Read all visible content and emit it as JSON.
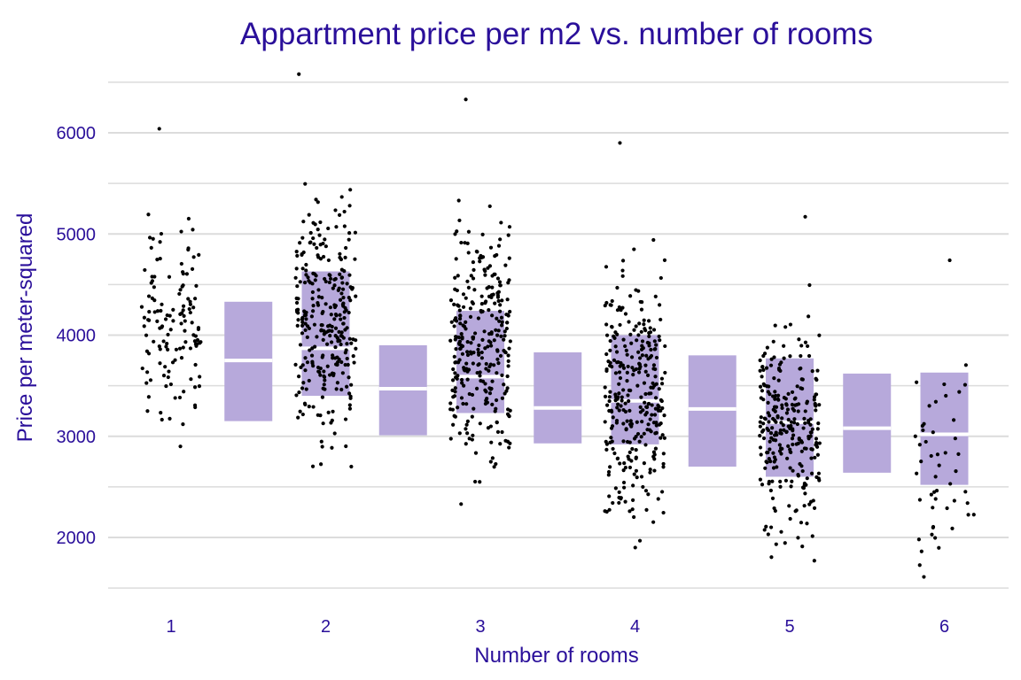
{
  "chart_data": {
    "type": "scatter",
    "title": "Appartment price per m2 vs. number of rooms",
    "xlabel": "Number of rooms",
    "ylabel": "Price per meter-squared",
    "x_ticks": [
      "1",
      "2",
      "3",
      "4",
      "5",
      "6"
    ],
    "y_ticks": [
      "2000",
      "3000",
      "4000",
      "5000",
      "6000"
    ],
    "ylim": [
      1500,
      6700
    ],
    "grid": true,
    "colors": {
      "text": "#2a0f9a",
      "box": "#b7a9db",
      "point": "#000000",
      "grid": "#dcdcdc"
    },
    "boxes": [
      {
        "x": 1.5,
        "q1": 3150,
        "median": 3750,
        "q3": 4330
      },
      {
        "x": 2.0,
        "q1": 3400,
        "median": 3870,
        "q3": 4630
      },
      {
        "x": 2.5,
        "q1": 3010,
        "median": 3470,
        "q3": 3900
      },
      {
        "x": 3.0,
        "q1": 3230,
        "median": 3590,
        "q3": 4240
      },
      {
        "x": 3.5,
        "q1": 2930,
        "median": 3280,
        "q3": 3830
      },
      {
        "x": 4.0,
        "q1": 2920,
        "median": 3350,
        "q3": 4000
      },
      {
        "x": 4.5,
        "q1": 2700,
        "median": 3270,
        "q3": 3800
      },
      {
        "x": 5.0,
        "q1": 2600,
        "median": 3140,
        "q3": 3770
      },
      {
        "x": 5.5,
        "q1": 2640,
        "median": 3080,
        "q3": 3620
      },
      {
        "x": 6.0,
        "q1": 2520,
        "median": 3020,
        "q3": 3630
      }
    ],
    "points": [
      {
        "rooms": 1,
        "n": 130,
        "min": 2900,
        "max": 6040
      },
      {
        "rooms": 2,
        "n": 290,
        "min": 2700,
        "max": 6580
      },
      {
        "rooms": 3,
        "n": 300,
        "min": 2330,
        "max": 6330
      },
      {
        "rooms": 4,
        "n": 310,
        "min": 1900,
        "max": 5900
      },
      {
        "rooms": 5,
        "n": 270,
        "min": 1770,
        "max": 5170
      },
      {
        "rooms": 6,
        "n": 50,
        "min": 1610,
        "max": 4740
      }
    ]
  }
}
